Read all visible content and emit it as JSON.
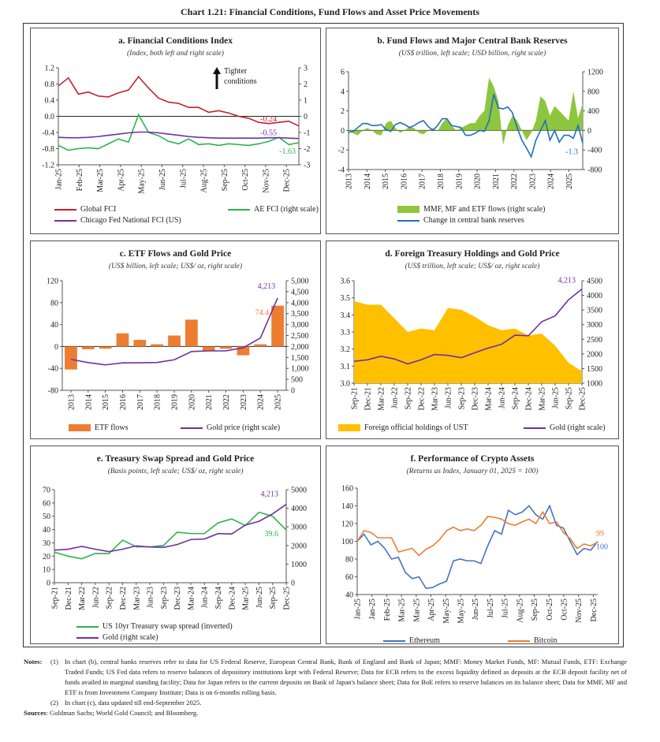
{
  "title": "Chart 1.21: Financial Conditions, Fund Flows and Asset Price Movements",
  "chart_data": [
    {
      "id": "a",
      "type": "line",
      "title": "a. Financial Conditions Index",
      "subtitle": "(Index, both left and right scale)",
      "annotation": "Tighter conditions",
      "x_ticks": [
        "Jan-25",
        "Feb-25",
        "Mar-25",
        "Apr-25",
        "May-25",
        "Jun-25",
        "Jul-25",
        "Aug-25",
        "Sep-25",
        "Oct-25",
        "Nov-25",
        "Dec-25"
      ],
      "y_left": {
        "min": -1.2,
        "max": 1.2,
        "step": 0.4,
        "decimals": 1
      },
      "y_right": {
        "min": -3,
        "max": 3,
        "step": 1,
        "decimals": 0
      },
      "zero_line": true,
      "series": [
        {
          "name": "Global FCI",
          "axis": "left",
          "color": "#c8202a",
          "end_label": "-0.24",
          "values": [
            0.75,
            0.95,
            0.55,
            0.6,
            0.5,
            0.48,
            0.58,
            0.65,
            0.98,
            0.7,
            0.45,
            0.35,
            0.32,
            0.22,
            0.22,
            0.1,
            0.14,
            0.08,
            0.0,
            -0.05,
            -0.15,
            -0.18,
            -0.15,
            -0.12,
            -0.24
          ]
        },
        {
          "name": "AE FCI (right scale)",
          "axis": "right",
          "color": "#2db34a",
          "end_label": "-1.63",
          "values": [
            -1.8,
            -2.1,
            -2.0,
            -1.95,
            -2.0,
            -1.7,
            -1.4,
            -1.6,
            0.1,
            -1.0,
            -1.2,
            -1.55,
            -1.7,
            -1.4,
            -1.75,
            -1.7,
            -1.8,
            -1.7,
            -1.75,
            -1.8,
            -1.7,
            -1.55,
            -1.3,
            -1.75,
            -1.63
          ]
        },
        {
          "name": "Chicago Fed National FCI (US)",
          "axis": "left",
          "color": "#7030a0",
          "end_label": "-0.55",
          "values": [
            -0.52,
            -0.53,
            -0.53,
            -0.52,
            -0.5,
            -0.47,
            -0.44,
            -0.41,
            -0.39,
            -0.39,
            -0.41,
            -0.44,
            -0.47,
            -0.5,
            -0.52,
            -0.53,
            -0.54,
            -0.54,
            -0.54,
            -0.54,
            -0.54,
            -0.53,
            -0.53,
            -0.54,
            -0.55
          ]
        }
      ]
    },
    {
      "id": "b",
      "type": "line",
      "title": "b. Fund Flows and Major Central Bank Reserves",
      "subtitle": "(US$ trillion, left scale; USD billion, right scale)",
      "x_ticks": [
        "2013",
        "2014",
        "2015",
        "2016",
        "2017",
        "2018",
        "2019",
        "2020",
        "2021",
        "2022",
        "2023",
        "2024",
        "2025"
      ],
      "y_left": {
        "min": -4,
        "max": 6,
        "step": 2,
        "decimals": 0
      },
      "y_right": {
        "min": -800,
        "max": 1200,
        "step": 400,
        "decimals": 0
      },
      "zero_line": true,
      "series": [
        {
          "name": "MMF, MF and ETF flows (right scale)",
          "axis": "right",
          "kind": "area",
          "color": "#8dc63f",
          "values": [
            0,
            -60,
            -100,
            0,
            50,
            0,
            -80,
            -100,
            150,
            200,
            50,
            -50,
            0,
            80,
            50,
            -50,
            -80,
            0,
            50,
            -20,
            150,
            250,
            100,
            0,
            50,
            100,
            150,
            150,
            300,
            400,
            1080,
            900,
            600,
            -300,
            100,
            300,
            200,
            0,
            -200,
            -50,
            200,
            700,
            600,
            300,
            500,
            400,
            300,
            200,
            800,
            250,
            550
          ]
        },
        {
          "name": "Change in central bank reserves",
          "axis": "left",
          "color": "#1f6fc0",
          "end_label": "-1.3",
          "values": [
            -0.2,
            -0.1,
            0.3,
            0.7,
            0.7,
            0.5,
            0.5,
            0.6,
            0.1,
            -0.1,
            0.6,
            0.8,
            0.6,
            0.3,
            0.5,
            0.8,
            1.0,
            0.4,
            0.0,
            0.5,
            1.2,
            1.2,
            0.5,
            0.4,
            0.3,
            -0.5,
            -0.5,
            -0.3,
            0.0,
            -0.1,
            1.0,
            3.7,
            2.3,
            2.2,
            2.4,
            1.8,
            0.3,
            -1.0,
            -1.8,
            -2.7,
            -1.0,
            0.0,
            1.0,
            -1.0,
            0.0,
            -1.2,
            -0.5,
            -0.5,
            -0.8,
            0.5,
            -1.3
          ]
        }
      ]
    },
    {
      "id": "c",
      "type": "bar",
      "title": "c. ETF Flows and Gold Price",
      "subtitle": "(US$ billion, left scale; US$/ oz, right scale)",
      "categories": [
        "2013",
        "2014",
        "2015",
        "2016",
        "2017",
        "2018",
        "2019",
        "2020",
        "2021",
        "2022",
        "2023",
        "2024",
        "2025"
      ],
      "y_left": {
        "min": -80,
        "max": 120,
        "step": 40,
        "decimals": 0
      },
      "y_right": {
        "min": 0,
        "max": 5000,
        "step": 500,
        "decimals": 0,
        "thousands": true
      },
      "zero_line": true,
      "series": [
        {
          "name": "ETF flows",
          "axis": "left",
          "kind": "bar",
          "color": "#ed7d31",
          "end_label": "74.4",
          "values": [
            -42,
            -5,
            -4,
            24,
            12,
            4,
            20,
            49,
            -8,
            -4,
            -16,
            4,
            74.4
          ]
        },
        {
          "name": "Gold price (right scale)",
          "axis": "right",
          "color": "#7030a0",
          "end_label": "4,213",
          "values": [
            1411,
            1266,
            1160,
            1251,
            1257,
            1269,
            1393,
            1770,
            1799,
            1802,
            1943,
            2386,
            4213
          ]
        }
      ]
    },
    {
      "id": "d",
      "type": "area",
      "title": "d. Foreign Treasury Holdings and Gold Price",
      "subtitle": "(US$ trillion, left scale; US$/ oz, right scale)",
      "x_ticks": [
        "Sep-21",
        "Dec-21",
        "Mar-22",
        "Jun-22",
        "Sep-22",
        "Dec-22",
        "Mar-23",
        "Jun-23",
        "Sep-23",
        "Dec-23",
        "Mar-24",
        "Jun-24",
        "Sep-24",
        "Dec-24",
        "Mar-25",
        "Jun-25",
        "Sep-25",
        "Dec-25"
      ],
      "y_left": {
        "min": 3.0,
        "max": 3.6,
        "step": 0.1,
        "decimals": 1
      },
      "y_right": {
        "min": 1000,
        "max": 4500,
        "step": 500,
        "decimals": 0
      },
      "series": [
        {
          "name": "Foreign official holdings of UST",
          "axis": "left",
          "kind": "area",
          "color": "#ffc000",
          "values": [
            3.48,
            3.46,
            3.46,
            3.38,
            3.3,
            3.32,
            3.31,
            3.44,
            3.43,
            3.39,
            3.34,
            3.31,
            3.32,
            3.28,
            3.29,
            3.22,
            3.12,
            3.07
          ]
        },
        {
          "name": "Gold (right scale)",
          "axis": "right",
          "color": "#7030a0",
          "end_label": "4,213",
          "values": [
            1750,
            1800,
            1920,
            1830,
            1660,
            1800,
            1980,
            1950,
            1870,
            2040,
            2200,
            2330,
            2640,
            2620,
            3100,
            3300,
            3850,
            4213
          ]
        }
      ]
    },
    {
      "id": "e",
      "type": "line",
      "title": "e. Treasury Swap Spread and Gold Price",
      "subtitle": "(Basis points, left scale; US$/ oz, right scale)",
      "x_ticks": [
        "Sep-21",
        "Dec-21",
        "Mar-22",
        "Jun-22",
        "Sep-22",
        "Dec-22",
        "Mar-23",
        "Jun-23",
        "Sep-23",
        "Dec-23",
        "Mar-24",
        "Jun-24",
        "Sep-24",
        "Dec-24",
        "Mar-25",
        "Jun-25",
        "Sep-25",
        "Dec-25"
      ],
      "y_left": {
        "min": 0,
        "max": 70,
        "step": 10,
        "decimals": 0
      },
      "y_right": {
        "min": 0,
        "max": 5000,
        "step": 1000,
        "decimals": 0
      },
      "series": [
        {
          "name": "US 10yr Treasury swap spread (inverted)",
          "axis": "left",
          "color": "#2db34a",
          "end_label": "39.6",
          "values": [
            23,
            20,
            18,
            22,
            22,
            32,
            27,
            27,
            28,
            38,
            37,
            37,
            45,
            48,
            43,
            53,
            50,
            39.6
          ]
        },
        {
          "name": "Gold (right scale)",
          "axis": "right",
          "color": "#7030a0",
          "end_label": "4,213",
          "values": [
            1750,
            1800,
            1950,
            1800,
            1670,
            1800,
            1980,
            1920,
            1900,
            2050,
            2320,
            2350,
            2640,
            2620,
            3100,
            3300,
            3700,
            4213
          ]
        }
      ]
    },
    {
      "id": "f",
      "type": "line",
      "title": "f. Performance of Crypto Assets",
      "subtitle": "(Returns as Index, January 01, 2025 = 100)",
      "x_ticks": [
        "Jan-25",
        "Jan-25",
        "Feb-25",
        "Mar-25",
        "Mar-25",
        "Apr-25",
        "May-25",
        "May-25",
        "Jun-25",
        "Jul-25",
        "Jul-25",
        "Aug-25",
        "Sep-25",
        "Oct-25",
        "Oct-25",
        "Nov-25",
        "Dec-25"
      ],
      "y_left": {
        "min": 40,
        "max": 160,
        "step": 20,
        "decimals": 0
      },
      "series": [
        {
          "name": "Ethereum",
          "axis": "left",
          "color": "#4472c4",
          "end_label": "100",
          "values": [
            100,
            108,
            96,
            100,
            92,
            80,
            82,
            65,
            58,
            60,
            47,
            48,
            52,
            55,
            78,
            80,
            78,
            78,
            75,
            95,
            112,
            108,
            135,
            130,
            133,
            140,
            130,
            125,
            140,
            118,
            115,
            100,
            85,
            92,
            90,
            100
          ]
        },
        {
          "name": "Bitcoin",
          "axis": "left",
          "color": "#ed7d31",
          "end_label": "99",
          "values": [
            100,
            112,
            110,
            104,
            104,
            104,
            88,
            90,
            92,
            84,
            91,
            95,
            102,
            112,
            116,
            112,
            114,
            112,
            118,
            128,
            127,
            125,
            120,
            118,
            122,
            125,
            120,
            133,
            120,
            122,
            110,
            103,
            92,
            97,
            95,
            99
          ]
        }
      ]
    }
  ],
  "notes": {
    "label": "Notes:",
    "items": [
      {
        "num": "(1)",
        "text": "In chart (b), central banks reserves refer to data for US Federal Reserve, European Central Bank, Bank of England and Bank of Japan; MMF: Money Market Funds, MF: Mutual Funds, ETF: Exchange Traded Funds; US Fed data refers to reserve balances of depository institutions kept with Federal Reserve; Data for ECB refers to the excess liquidity defined as deposits at the ECB deposit facility net of funds availed in marginal standing facility; Data for Japan refers to the current deposits on Bank of Japan's balance sheet; Data for BoE refers to reserve balances on its balance sheet; Data for MMF, MF and ETF is from Investment Company Institute; Data is on 6-months rolling basis."
      },
      {
        "num": "(2)",
        "text": "In chart (c), data updated till end-September 2025."
      }
    ],
    "sources_label": "Sources",
    "sources": ": Goldman Sachs; World Gold Council; and Bloomberg."
  }
}
